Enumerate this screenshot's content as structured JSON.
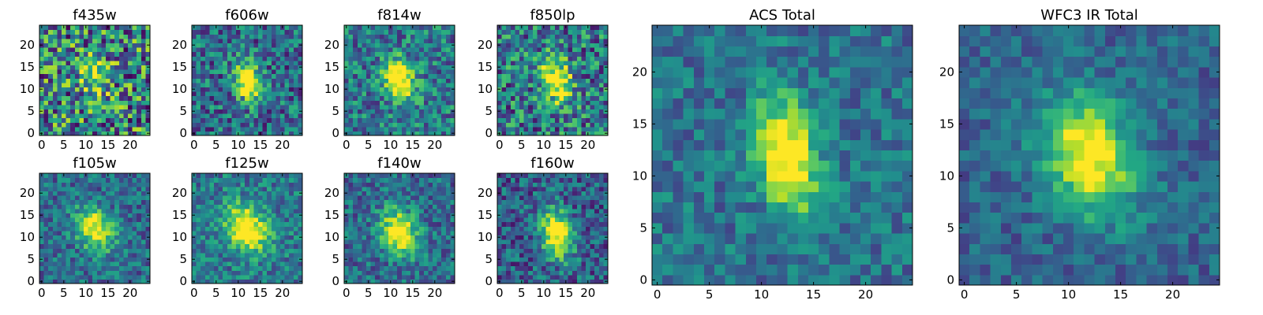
{
  "chart_data": [
    {
      "type": "heatmap",
      "title": "f435w",
      "xlim": [
        -0.5,
        24.5
      ],
      "ylim": [
        -0.5,
        24.5
      ],
      "xticks": [
        0,
        5,
        10,
        15,
        20
      ],
      "yticks": [
        0,
        5,
        10,
        15,
        20
      ],
      "colormap": "viridis",
      "center": [
        12,
        13
      ],
      "peak": 0.55,
      "spread": [
        2.2,
        2.8
      ],
      "noise": 0.45,
      "base": 0.45
    },
    {
      "type": "heatmap",
      "title": "f606w",
      "xlim": [
        -0.5,
        24.5
      ],
      "ylim": [
        -0.5,
        24.5
      ],
      "xticks": [
        0,
        5,
        10,
        15,
        20
      ],
      "yticks": [
        0,
        5,
        10,
        15,
        20
      ],
      "colormap": "viridis",
      "center": [
        12,
        12
      ],
      "peak": 0.8,
      "spread": [
        2.0,
        3.0
      ],
      "noise": 0.3,
      "base": 0.35
    },
    {
      "type": "heatmap",
      "title": "f814w",
      "xlim": [
        -0.5,
        24.5
      ],
      "ylim": [
        -0.5,
        24.5
      ],
      "xticks": [
        0,
        5,
        10,
        15,
        20
      ],
      "yticks": [
        0,
        5,
        10,
        15,
        20
      ],
      "colormap": "viridis",
      "center": [
        12,
        12
      ],
      "peak": 0.8,
      "spread": [
        2.2,
        3.2
      ],
      "noise": 0.28,
      "base": 0.4
    },
    {
      "type": "heatmap",
      "title": "f850lp",
      "xlim": [
        -0.5,
        24.5
      ],
      "ylim": [
        -0.5,
        24.5
      ],
      "xticks": [
        0,
        5,
        10,
        15,
        20
      ],
      "yticks": [
        0,
        5,
        10,
        15,
        20
      ],
      "colormap": "viridis",
      "center": [
        13,
        12
      ],
      "peak": 0.75,
      "spread": [
        2.2,
        3.5
      ],
      "noise": 0.35,
      "base": 0.4
    },
    {
      "type": "heatmap",
      "title": "f105w",
      "xlim": [
        -0.5,
        24.5
      ],
      "ylim": [
        -0.5,
        24.5
      ],
      "xticks": [
        0,
        5,
        10,
        15,
        20
      ],
      "yticks": [
        0,
        5,
        10,
        15,
        20
      ],
      "colormap": "viridis",
      "center": [
        12,
        12
      ],
      "peak": 0.7,
      "spread": [
        3.0,
        3.2
      ],
      "noise": 0.22,
      "base": 0.35
    },
    {
      "type": "heatmap",
      "title": "f125w",
      "xlim": [
        -0.5,
        24.5
      ],
      "ylim": [
        -0.5,
        24.5
      ],
      "xticks": [
        0,
        5,
        10,
        15,
        20
      ],
      "yticks": [
        0,
        5,
        10,
        15,
        20
      ],
      "colormap": "viridis",
      "center": [
        12,
        12
      ],
      "peak": 0.75,
      "spread": [
        3.2,
        3.5
      ],
      "noise": 0.22,
      "base": 0.4
    },
    {
      "type": "heatmap",
      "title": "f140w",
      "xlim": [
        -0.5,
        24.5
      ],
      "ylim": [
        -0.5,
        24.5
      ],
      "xticks": [
        0,
        5,
        10,
        15,
        20
      ],
      "yticks": [
        0,
        5,
        10,
        15,
        20
      ],
      "colormap": "viridis",
      "center": [
        12,
        11
      ],
      "peak": 0.75,
      "spread": [
        2.8,
        3.5
      ],
      "noise": 0.22,
      "base": 0.35
    },
    {
      "type": "heatmap",
      "title": "f160w",
      "xlim": [
        -0.5,
        24.5
      ],
      "ylim": [
        -0.5,
        24.5
      ],
      "xticks": [
        0,
        5,
        10,
        15,
        20
      ],
      "yticks": [
        0,
        5,
        10,
        15,
        20
      ],
      "colormap": "viridis",
      "center": [
        13,
        11
      ],
      "peak": 0.8,
      "spread": [
        2.5,
        3.8
      ],
      "noise": 0.25,
      "base": 0.3
    },
    {
      "type": "heatmap",
      "title": "ACS Total",
      "xlim": [
        -0.5,
        24.5
      ],
      "ylim": [
        -0.5,
        24.5
      ],
      "xticks": [
        0,
        5,
        10,
        15,
        20
      ],
      "yticks": [
        0,
        5,
        10,
        15,
        20
      ],
      "colormap": "viridis",
      "center": [
        12.5,
        12
      ],
      "peak": 0.8,
      "spread": [
        2.0,
        3.5
      ],
      "noise": 0.18,
      "base": 0.38
    },
    {
      "type": "heatmap",
      "title": "WFC3 IR Total",
      "xlim": [
        -0.5,
        24.5
      ],
      "ylim": [
        -0.5,
        24.5
      ],
      "xticks": [
        0,
        5,
        10,
        15,
        20
      ],
      "yticks": [
        0,
        5,
        10,
        15,
        20
      ],
      "colormap": "viridis",
      "center": [
        12,
        12
      ],
      "peak": 0.75,
      "spread": [
        3.0,
        3.8
      ],
      "noise": 0.15,
      "base": 0.32
    }
  ]
}
